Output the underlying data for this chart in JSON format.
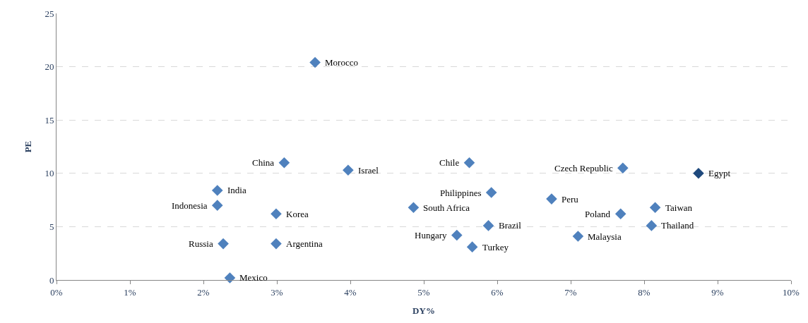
{
  "chart_data": {
    "type": "scatter",
    "xlabel": "DY%",
    "ylabel": "PE",
    "x": [
      3.52,
      3.1,
      3.97,
      5.62,
      7.71,
      8.74,
      2.19,
      2.19,
      2.99,
      5.92,
      6.74,
      4.86,
      7.68,
      8.15,
      5.88,
      8.1,
      5.45,
      7.1,
      2.27,
      2.99,
      5.66,
      2.36
    ],
    "values": [
      20.4,
      11.0,
      10.3,
      11.0,
      10.5,
      10.0,
      8.4,
      7.0,
      6.2,
      8.2,
      7.6,
      6.8,
      6.2,
      6.8,
      5.1,
      5.1,
      4.2,
      4.1,
      3.4,
      3.4,
      3.1,
      0.2
    ],
    "colors": [
      "#4f81bd",
      "#4f81bd",
      "#4f81bd",
      "#4f81bd",
      "#4f81bd",
      "#1f497d",
      "#4f81bd",
      "#4f81bd",
      "#4f81bd",
      "#4f81bd",
      "#4f81bd",
      "#4f81bd",
      "#4f81bd",
      "#4f81bd",
      "#4f81bd",
      "#4f81bd",
      "#4f81bd",
      "#4f81bd",
      "#4f81bd",
      "#4f81bd",
      "#4f81bd",
      "#4f81bd"
    ],
    "marker": "diamond",
    "xlim": [
      0,
      10
    ],
    "ylim": [
      0,
      25
    ],
    "xticks": [
      {
        "value": 0,
        "label": "0%"
      },
      {
        "value": 1,
        "label": "1%"
      },
      {
        "value": 2,
        "label": "2%"
      },
      {
        "value": 3,
        "label": "3%"
      },
      {
        "value": 4,
        "label": "4%"
      },
      {
        "value": 5,
        "label": "5%"
      },
      {
        "value": 6,
        "label": "6%"
      },
      {
        "value": 7,
        "label": "7%"
      },
      {
        "value": 8,
        "label": "8%"
      },
      {
        "value": 9,
        "label": "9%"
      },
      {
        "value": 10,
        "label": "10%"
      }
    ],
    "yticks": [
      0,
      5,
      10,
      15,
      20,
      25
    ],
    "grid": "y",
    "legend": false,
    "annotations": [
      {
        "text": "Morocco",
        "x": 3.52,
        "y": 20.4
      },
      {
        "text": "China",
        "x": 3.1,
        "y": 11.0
      },
      {
        "text": "Israel",
        "x": 3.97,
        "y": 10.3
      },
      {
        "text": "Chile",
        "x": 5.62,
        "y": 11.0
      },
      {
        "text": "Czech Republic",
        "x": 7.71,
        "y": 10.5
      },
      {
        "text": "Egypt",
        "x": 8.74,
        "y": 10.0
      },
      {
        "text": "India",
        "x": 2.19,
        "y": 8.4
      },
      {
        "text": "Indonesia",
        "x": 2.19,
        "y": 7.0
      },
      {
        "text": "Korea",
        "x": 2.99,
        "y": 6.2
      },
      {
        "text": "Philippines",
        "x": 5.92,
        "y": 8.2
      },
      {
        "text": "Peru",
        "x": 6.74,
        "y": 7.6
      },
      {
        "text": "South Africa",
        "x": 4.86,
        "y": 6.8
      },
      {
        "text": "Poland",
        "x": 7.68,
        "y": 6.2
      },
      {
        "text": "Taiwan",
        "x": 8.15,
        "y": 6.8
      },
      {
        "text": "Brazil",
        "x": 5.88,
        "y": 5.1
      },
      {
        "text": "Thailand",
        "x": 8.1,
        "y": 5.1
      },
      {
        "text": "Hungary",
        "x": 5.45,
        "y": 4.2
      },
      {
        "text": "Malaysia",
        "x": 7.1,
        "y": 4.1
      },
      {
        "text": "Russia",
        "x": 2.27,
        "y": 3.4
      },
      {
        "text": "Argentina",
        "x": 2.99,
        "y": 3.4
      },
      {
        "text": "Turkey",
        "x": 5.66,
        "y": 3.1
      },
      {
        "text": "Mexico",
        "x": 2.36,
        "y": 0.2
      }
    ]
  }
}
